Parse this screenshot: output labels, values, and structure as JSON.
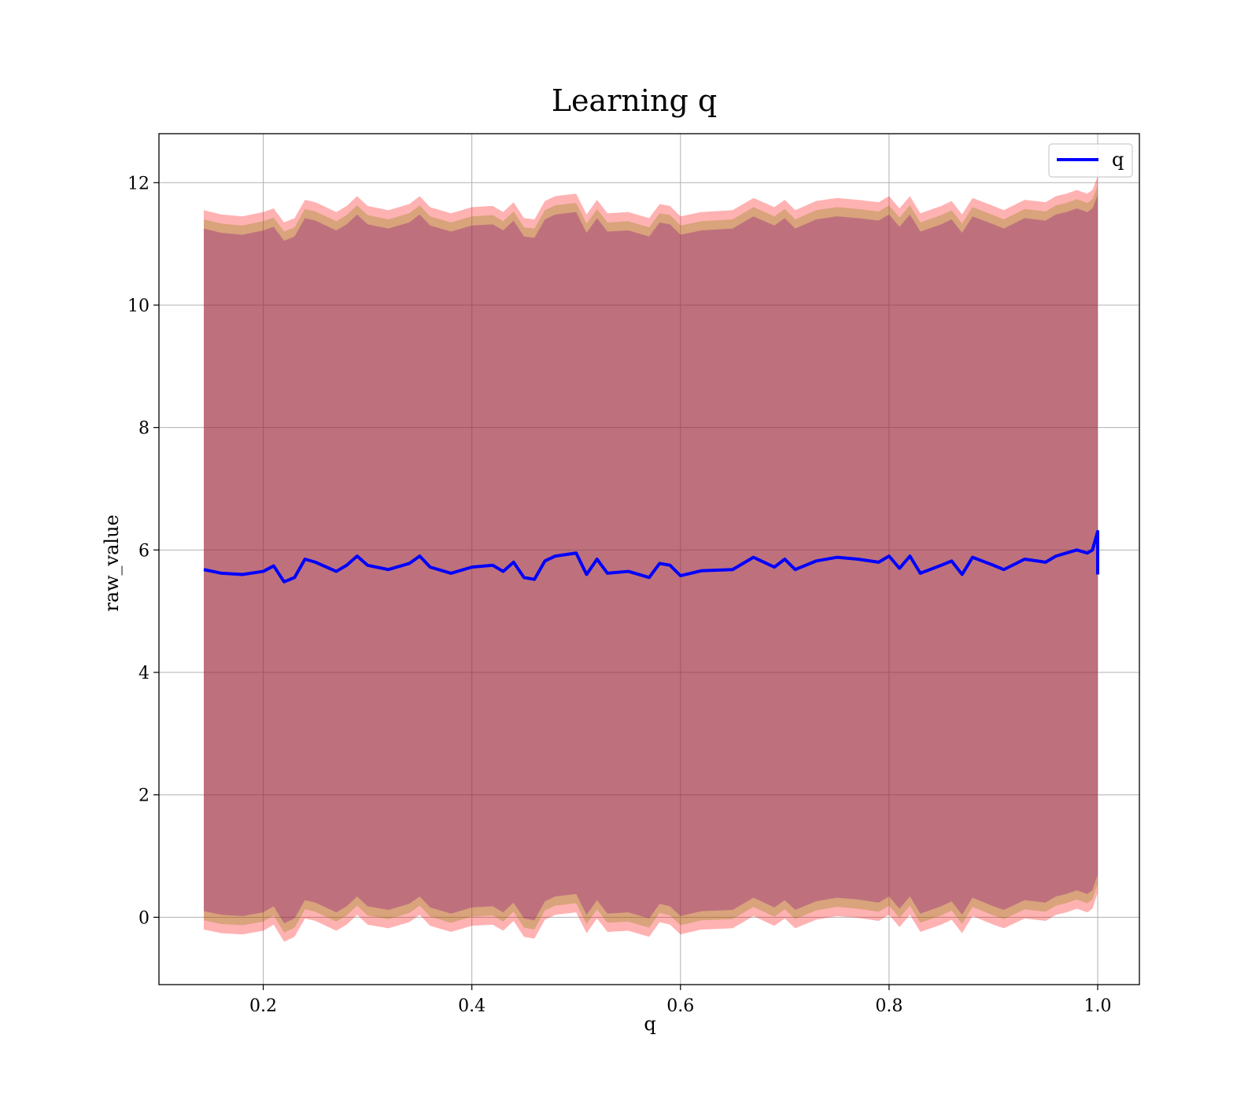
{
  "chart_data": {
    "type": "line",
    "title": "Learning q",
    "xlabel": "q",
    "ylabel": "raw_value",
    "xlim": [
      0.1,
      1.04
    ],
    "ylim": [
      -1.1,
      12.8
    ],
    "xticks": [
      0.2,
      0.4,
      0.6,
      0.8,
      1.0
    ],
    "xtick_labels": [
      "0.2",
      "0.4",
      "0.6",
      "0.8",
      "1.0"
    ],
    "yticks": [
      0,
      2,
      4,
      6,
      8,
      10,
      12
    ],
    "ytick_labels": [
      "0",
      "2",
      "4",
      "6",
      "8",
      "10",
      "12"
    ],
    "grid": true,
    "legend": {
      "placement": "top-right",
      "entries": [
        {
          "label": "q",
          "color": "#0000ff"
        }
      ]
    },
    "series": [
      {
        "name": "q",
        "color": "#0000ff",
        "x": [
          0.143,
          0.16,
          0.18,
          0.2,
          0.21,
          0.22,
          0.23,
          0.24,
          0.25,
          0.27,
          0.28,
          0.29,
          0.3,
          0.32,
          0.34,
          0.35,
          0.36,
          0.38,
          0.4,
          0.42,
          0.43,
          0.44,
          0.45,
          0.46,
          0.47,
          0.48,
          0.5,
          0.51,
          0.52,
          0.53,
          0.55,
          0.57,
          0.58,
          0.59,
          0.6,
          0.62,
          0.65,
          0.67,
          0.69,
          0.7,
          0.71,
          0.73,
          0.75,
          0.77,
          0.79,
          0.8,
          0.81,
          0.82,
          0.83,
          0.85,
          0.86,
          0.87,
          0.88,
          0.9,
          0.91,
          0.93,
          0.95,
          0.96,
          0.97,
          0.98,
          0.99,
          0.995,
          1.0,
          1.0
        ],
        "y": [
          5.68,
          5.62,
          5.6,
          5.65,
          5.74,
          5.48,
          5.55,
          5.85,
          5.8,
          5.65,
          5.75,
          5.9,
          5.75,
          5.68,
          5.78,
          5.9,
          5.72,
          5.62,
          5.72,
          5.75,
          5.65,
          5.8,
          5.55,
          5.52,
          5.82,
          5.9,
          5.95,
          5.6,
          5.85,
          5.62,
          5.65,
          5.55,
          5.78,
          5.75,
          5.58,
          5.66,
          5.68,
          5.88,
          5.72,
          5.85,
          5.68,
          5.82,
          5.88,
          5.85,
          5.8,
          5.9,
          5.7,
          5.9,
          5.62,
          5.75,
          5.82,
          5.6,
          5.88,
          5.75,
          5.68,
          5.85,
          5.8,
          5.9,
          5.95,
          6.0,
          5.95,
          6.0,
          6.3,
          5.6
        ]
      }
    ],
    "bands": [
      {
        "color": "#ff0000",
        "opacity": 0.3,
        "upper": [
          11.55,
          11.48,
          11.45,
          11.52,
          11.58,
          11.35,
          11.42,
          11.72,
          11.68,
          11.52,
          11.62,
          11.78,
          11.62,
          11.55,
          11.65,
          11.78,
          11.6,
          11.5,
          11.6,
          11.62,
          11.52,
          11.68,
          11.42,
          11.4,
          11.7,
          11.78,
          11.82,
          11.48,
          11.72,
          11.5,
          11.52,
          11.42,
          11.65,
          11.62,
          11.45,
          11.52,
          11.55,
          11.75,
          11.6,
          11.72,
          11.55,
          11.7,
          11.75,
          11.72,
          11.68,
          11.78,
          11.58,
          11.78,
          11.5,
          11.62,
          11.7,
          11.48,
          11.75,
          11.62,
          11.55,
          11.72,
          11.68,
          11.78,
          11.82,
          11.88,
          11.82,
          11.88,
          12.1,
          11.5
        ],
        "lower": [
          -0.2,
          -0.26,
          -0.28,
          -0.22,
          -0.12,
          -0.4,
          -0.32,
          -0.02,
          -0.06,
          -0.22,
          -0.12,
          0.04,
          -0.12,
          -0.18,
          -0.08,
          0.04,
          -0.14,
          -0.24,
          -0.14,
          -0.12,
          -0.22,
          -0.06,
          -0.32,
          -0.35,
          -0.04,
          0.04,
          0.08,
          -0.26,
          -0.02,
          -0.24,
          -0.22,
          -0.32,
          -0.08,
          -0.12,
          -0.28,
          -0.2,
          -0.18,
          0.02,
          -0.14,
          -0.02,
          -0.18,
          -0.04,
          0.02,
          -0.01,
          -0.06,
          0.04,
          -0.16,
          0.04,
          -0.24,
          -0.12,
          -0.04,
          -0.26,
          0.02,
          -0.12,
          -0.18,
          -0.02,
          -0.06,
          0.04,
          0.08,
          0.14,
          0.08,
          0.14,
          0.4,
          -0.3
        ]
      },
      {
        "color": "#808000",
        "opacity": 0.3,
        "upper": [
          11.4,
          11.33,
          11.3,
          11.37,
          11.43,
          11.2,
          11.27,
          11.57,
          11.53,
          11.37,
          11.47,
          11.63,
          11.47,
          11.4,
          11.5,
          11.63,
          11.45,
          11.35,
          11.45,
          11.47,
          11.37,
          11.53,
          11.27,
          11.25,
          11.55,
          11.63,
          11.67,
          11.33,
          11.57,
          11.35,
          11.37,
          11.27,
          11.5,
          11.47,
          11.3,
          11.37,
          11.4,
          11.6,
          11.45,
          11.57,
          11.4,
          11.55,
          11.6,
          11.57,
          11.53,
          11.63,
          11.43,
          11.63,
          11.35,
          11.47,
          11.55,
          11.33,
          11.6,
          11.47,
          11.4,
          11.57,
          11.53,
          11.63,
          11.67,
          11.73,
          11.67,
          11.73,
          11.95,
          11.35
        ],
        "lower": [
          -0.05,
          -0.11,
          -0.13,
          -0.07,
          0.03,
          -0.25,
          -0.17,
          0.13,
          0.09,
          -0.07,
          0.03,
          0.19,
          0.03,
          -0.03,
          0.07,
          0.19,
          0.01,
          -0.09,
          0.01,
          0.03,
          -0.07,
          0.09,
          -0.17,
          -0.2,
          0.11,
          0.19,
          0.23,
          -0.11,
          0.13,
          -0.09,
          -0.07,
          -0.17,
          0.07,
          0.03,
          -0.13,
          -0.05,
          -0.03,
          0.17,
          0.01,
          0.13,
          -0.03,
          0.11,
          0.17,
          0.14,
          0.09,
          0.19,
          -0.01,
          0.19,
          -0.09,
          0.03,
          0.11,
          -0.11,
          0.17,
          0.03,
          -0.03,
          0.13,
          0.09,
          0.19,
          0.23,
          0.29,
          0.23,
          0.29,
          0.55,
          -0.15
        ]
      },
      {
        "color": "#800080",
        "opacity": 0.3,
        "upper": [
          11.25,
          11.18,
          11.15,
          11.22,
          11.28,
          11.05,
          11.12,
          11.42,
          11.38,
          11.22,
          11.32,
          11.48,
          11.32,
          11.25,
          11.35,
          11.48,
          11.3,
          11.2,
          11.3,
          11.32,
          11.22,
          11.38,
          11.12,
          11.1,
          11.4,
          11.48,
          11.52,
          11.18,
          11.42,
          11.2,
          11.22,
          11.12,
          11.35,
          11.32,
          11.15,
          11.22,
          11.25,
          11.45,
          11.3,
          11.42,
          11.25,
          11.4,
          11.45,
          11.42,
          11.38,
          11.48,
          11.28,
          11.48,
          11.2,
          11.32,
          11.4,
          11.18,
          11.45,
          11.32,
          11.25,
          11.42,
          11.38,
          11.48,
          11.52,
          11.58,
          11.52,
          11.58,
          11.8,
          11.2
        ],
        "lower": [
          0.1,
          0.04,
          0.02,
          0.08,
          0.18,
          -0.1,
          -0.02,
          0.28,
          0.24,
          0.08,
          0.18,
          0.34,
          0.18,
          0.12,
          0.22,
          0.34,
          0.16,
          0.06,
          0.16,
          0.18,
          0.08,
          0.24,
          -0.02,
          -0.05,
          0.26,
          0.34,
          0.38,
          0.04,
          0.28,
          0.06,
          0.08,
          -0.02,
          0.22,
          0.18,
          0.02,
          0.1,
          0.12,
          0.32,
          0.16,
          0.28,
          0.12,
          0.26,
          0.32,
          0.29,
          0.24,
          0.34,
          0.14,
          0.34,
          0.06,
          0.18,
          0.26,
          0.04,
          0.32,
          0.18,
          0.12,
          0.28,
          0.24,
          0.34,
          0.38,
          0.44,
          0.38,
          0.44,
          0.7,
          0.0
        ]
      }
    ]
  }
}
